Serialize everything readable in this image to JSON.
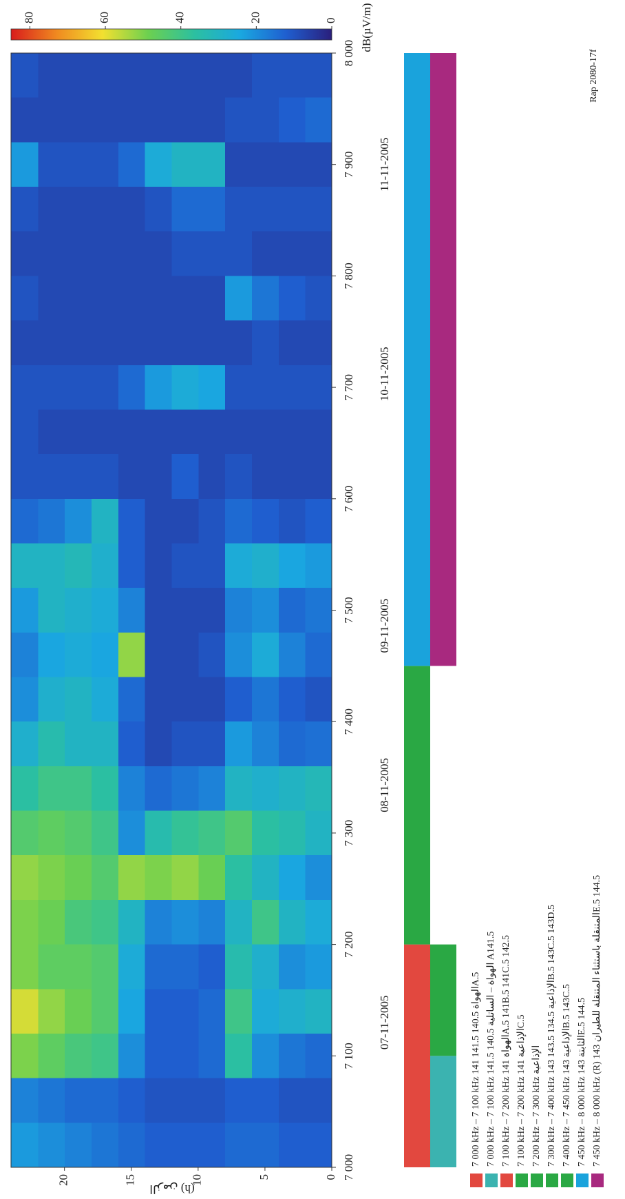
{
  "chart_data": {
    "type": "heatmap",
    "x_edges": [
      7000,
      7040,
      7080,
      7120,
      7160,
      7200,
      7240,
      7280,
      7320,
      7360,
      7400,
      7440,
      7480,
      7520,
      7560,
      7600,
      7640,
      7680,
      7720,
      7760,
      7800,
      7840,
      7880,
      7920,
      7960,
      8000
    ],
    "y_edges": [
      0,
      2,
      4,
      6,
      8,
      10,
      12,
      14,
      16,
      18,
      20,
      22,
      24
    ],
    "z": [
      [
        12,
        10,
        14,
        30,
        22,
        26,
        20,
        30,
        32,
        15,
        10,
        14,
        16,
        22,
        12,
        8,
        8,
        10,
        8,
        10,
        8,
        10,
        8,
        14,
        10
      ],
      [
        12,
        10,
        16,
        28,
        20,
        30,
        24,
        34,
        30,
        14,
        12,
        18,
        14,
        24,
        10,
        8,
        8,
        10,
        8,
        12,
        8,
        10,
        8,
        12,
        10
      ],
      [
        14,
        12,
        20,
        26,
        28,
        40,
        30,
        36,
        28,
        18,
        16,
        26,
        20,
        28,
        12,
        8,
        8,
        10,
        10,
        16,
        8,
        10,
        8,
        10,
        10
      ],
      [
        14,
        12,
        36,
        40,
        34,
        30,
        36,
        44,
        30,
        22,
        12,
        20,
        18,
        26,
        14,
        10,
        8,
        10,
        8,
        22,
        10,
        10,
        8,
        10,
        8
      ],
      [
        12,
        10,
        14,
        14,
        12,
        18,
        48,
        40,
        18,
        10,
        8,
        10,
        8,
        10,
        10,
        8,
        8,
        24,
        8,
        8,
        10,
        14,
        30,
        8,
        8
      ],
      [
        12,
        10,
        12,
        12,
        14,
        20,
        52,
        38,
        16,
        10,
        8,
        8,
        8,
        10,
        8,
        12,
        8,
        26,
        8,
        8,
        10,
        14,
        30,
        8,
        8
      ],
      [
        12,
        10,
        12,
        12,
        14,
        18,
        50,
        34,
        14,
        8,
        8,
        8,
        8,
        8,
        8,
        8,
        8,
        22,
        8,
        8,
        8,
        10,
        26,
        8,
        8
      ],
      [
        14,
        12,
        20,
        24,
        26,
        30,
        52,
        20,
        18,
        12,
        14,
        52,
        18,
        12,
        12,
        8,
        8,
        14,
        8,
        8,
        8,
        8,
        14,
        8,
        8
      ],
      [
        16,
        14,
        40,
        44,
        44,
        40,
        44,
        40,
        36,
        30,
        26,
        24,
        26,
        28,
        30,
        10,
        8,
        10,
        8,
        8,
        8,
        8,
        10,
        8,
        8
      ],
      [
        18,
        14,
        42,
        48,
        46,
        42,
        48,
        44,
        40,
        30,
        30,
        26,
        28,
        32,
        20,
        10,
        8,
        10,
        8,
        8,
        8,
        8,
        10,
        8,
        8
      ],
      [
        20,
        16,
        46,
        52,
        46,
        48,
        50,
        46,
        40,
        34,
        28,
        24,
        30,
        30,
        16,
        10,
        8,
        10,
        8,
        8,
        8,
        8,
        10,
        8,
        8
      ],
      [
        22,
        18,
        50,
        58,
        50,
        50,
        52,
        44,
        36,
        28,
        20,
        18,
        22,
        30,
        14,
        10,
        10,
        10,
        8,
        10,
        8,
        10,
        22,
        8,
        10
      ]
    ],
    "xlim": [
      7000,
      8000
    ],
    "xticks": [
      {
        "value": 7000,
        "label": "7 000"
      },
      {
        "value": 7100,
        "label": "7 100"
      },
      {
        "value": 7200,
        "label": "7 200"
      },
      {
        "value": 7300,
        "label": "7 300"
      },
      {
        "value": 7400,
        "label": "7 400"
      },
      {
        "value": 7500,
        "label": "7 500"
      },
      {
        "value": 7600,
        "label": "7 600"
      },
      {
        "value": 7700,
        "label": "7 700"
      },
      {
        "value": 7800,
        "label": "7 800"
      },
      {
        "value": 7900,
        "label": "7 900"
      },
      {
        "value": 8000,
        "label": "8 000"
      }
    ],
    "x2ticks": [
      {
        "value": 7130,
        "label": "07-11-2005"
      },
      {
        "value": 7343,
        "label": "08-11-2005"
      },
      {
        "value": 7486,
        "label": "09-11-2005"
      },
      {
        "value": 7712,
        "label": "10-11-2005"
      },
      {
        "value": 7900,
        "label": "11-11-2005"
      }
    ],
    "ylim": [
      0,
      24
    ],
    "yticks": [
      0,
      5,
      10,
      15,
      20
    ],
    "ylabel": "(h) الزمن",
    "colorbar": {
      "zlim": [
        0,
        85
      ],
      "ticks": [
        0,
        20,
        40,
        60,
        80
      ],
      "label": "dB(µV/m)",
      "colors": [
        "#2a1f7c",
        "#1f5fd0",
        "#1aa8e0",
        "#2cc0a0",
        "#6cd050",
        "#f2e030",
        "#f08a20",
        "#d81c1c"
      ]
    },
    "allocations": [
      [
        {
          "from": 7000,
          "to": 7200,
          "color": "#e2483f"
        },
        {
          "from": 7200,
          "to": 7450,
          "color": "#2aa844"
        },
        {
          "from": 7450,
          "to": 8000,
          "color": "#1aa3dc"
        }
      ],
      [
        {
          "from": 7000,
          "to": 7100,
          "color": "#3bb3b0"
        },
        {
          "from": 7100,
          "to": 7200,
          "color": "#2aa844"
        },
        {
          "from": 7450,
          "to": 8000,
          "color": "#a8297f"
        }
      ]
    ],
    "legend": [
      {
        "color": "#e2483f",
        "text": "7 000 kHz – 7 100 kHz  الهواة  140.5  141.5  141A.5"
      },
      {
        "color": "#3bb3b0",
        "text": "7 000 kHz – 7 100 kHz  الهواة – الساتلية  140.5  141.5  A141.5"
      },
      {
        "color": "#e2483f",
        "text": "7 100 kHz – 7 200 kHz  الهواة  141A.5  141B.5  141C.5  142.5"
      },
      {
        "color": "#2aa844",
        "text": "7 100 kHz – 7 200 kHz  الإذاعية  141C.5"
      },
      {
        "color": "#2aa844",
        "text": "7 200 kHz – 7 300 kHz  الإذاعية"
      },
      {
        "color": "#2aa844",
        "text": "7 300 kHz – 7 400 kHz  الإذاعية  134.5  143.5  143B.5  143C.5  143D.5"
      },
      {
        "color": "#2aa844",
        "text": "7 400 kHz – 7 450 kHz  الإذاعية  143B.5  143C.5"
      },
      {
        "color": "#1aa3dc",
        "text": "7 450 kHz – 8 000 kHz  الثابتة  143E.5  144.5"
      },
      {
        "color": "#a8297f",
        "text": "7 450 kHz – 8 000 kHz  (R) المتنقلة باستثناء المتنقلة للطيران  143E.5  144.5"
      }
    ],
    "source": "Rap 2080-17f"
  }
}
